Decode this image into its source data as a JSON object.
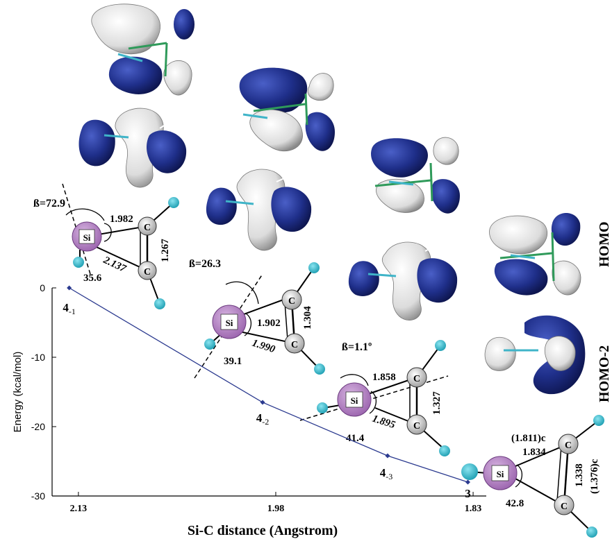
{
  "chart_data": {
    "type": "line",
    "xlabel": "Si-C distance (Angstrom)",
    "ylabel": "Energy (kcal/mol)",
    "xlim": [
      2.15,
      1.82
    ],
    "ylim": [
      -30,
      0
    ],
    "x_reversed": true,
    "xticks": [
      2.13,
      1.98,
      1.83
    ],
    "yticks": [
      0,
      -10,
      -20,
      -30
    ],
    "xtick_labels": [
      "2.13",
      "1.98",
      "1.83"
    ],
    "ytick_labels": [
      "0",
      "-10",
      "-20",
      "-30"
    ],
    "grid": false,
    "series": [
      {
        "color": "#2b3a8f",
        "points": [
          {
            "x": 2.137,
            "y": 0,
            "label": "4-1"
          },
          {
            "x": 1.99,
            "y": -16.5,
            "label": "4-2"
          },
          {
            "x": 1.895,
            "y": -24.2,
            "label": "4-3"
          },
          {
            "x": 1.834,
            "y": -28,
            "label": "3"
          }
        ]
      }
    ]
  },
  "point_labels": [
    {
      "main": "4",
      "sub": "-1"
    },
    {
      "main": "4",
      "sub": "-2"
    },
    {
      "main": "4",
      "sub": "-3"
    },
    {
      "main": "3",
      "sub": ""
    }
  ],
  "orbital_labels": [
    "HOMO",
    "HOMO-2"
  ],
  "structures": [
    {
      "beta": "ß=72.9",
      "sic_short": "1.982",
      "sic_long": "2.137",
      "cc": "1.267",
      "angle": "35.6"
    },
    {
      "beta": "ß=26.3",
      "sic_short": "1.902",
      "sic_long": "1.990",
      "cc": "1.304",
      "angle": "39.1"
    },
    {
      "beta": "ß=1.1º",
      "sic_short": "1.858",
      "sic_long": "1.895",
      "cc": "1.327",
      "angle": "41.4"
    },
    {
      "beta": "",
      "sic_short": "1.834",
      "sic_short_note": "(1.811)c",
      "cc": "1.338",
      "cc_note": "(1.376)c",
      "angle": "42.8"
    }
  ],
  "atoms": {
    "si": "Si",
    "c": "C"
  },
  "colors": {
    "line": "#2b3a8f",
    "orbital_dark": "#1f2f8a",
    "orbital_light": "#ececec",
    "si_atom": "#b07ec0",
    "h_atom": "#28b8cc"
  }
}
